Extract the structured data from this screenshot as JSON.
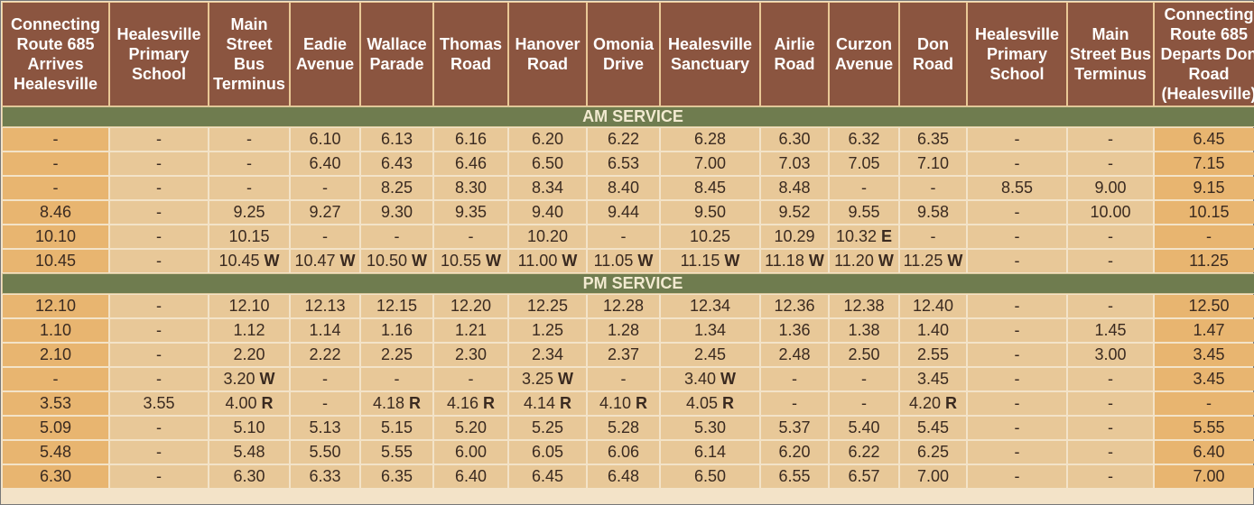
{
  "table": {
    "headers": [
      "Connecting Route 685 Arrives Healesville",
      "Healesville Primary School",
      "Main Street Bus Terminus",
      "Eadie Avenue",
      "Wallace Parade",
      "Thomas Road",
      "Hanover Road",
      "Omonia Drive",
      "Healesville Sanctuary",
      "Airlie Road",
      "Curzon Avenue",
      "Don Road",
      "Healesville Primary School",
      "Main Street Bus Terminus",
      "Connecting Route 685 Departs Don Road (Healesville)"
    ],
    "sections": [
      {
        "title": "AM SERVICE",
        "rows": [
          [
            "-",
            "-",
            "-",
            "6.10",
            "6.13",
            "6.16",
            "6.20",
            "6.22",
            "6.28",
            "6.30",
            "6.32",
            "6.35",
            "-",
            "-",
            "6.45"
          ],
          [
            "-",
            "-",
            "-",
            "6.40",
            "6.43",
            "6.46",
            "6.50",
            "6.53",
            "7.00",
            "7.03",
            "7.05",
            "7.10",
            "-",
            "-",
            "7.15"
          ],
          [
            "-",
            "-",
            "-",
            "-",
            "8.25",
            "8.30",
            "8.34",
            "8.40",
            "8.45",
            "8.48",
            "-",
            "-",
            "8.55",
            "9.00",
            "9.15"
          ],
          [
            "8.46",
            "-",
            "9.25",
            "9.27",
            "9.30",
            "9.35",
            "9.40",
            "9.44",
            "9.50",
            "9.52",
            "9.55",
            "9.58",
            "-",
            "10.00",
            "10.15"
          ],
          [
            "10.10",
            "-",
            "10.15",
            "-",
            "-",
            "-",
            "10.20",
            "-",
            "10.25",
            "10.29",
            {
              "time": "10.32",
              "note": "E"
            },
            "-",
            "-",
            "-",
            "-"
          ],
          [
            "10.45",
            "-",
            {
              "time": "10.45",
              "note": "W"
            },
            {
              "time": "10.47",
              "note": "W"
            },
            {
              "time": "10.50",
              "note": "W"
            },
            {
              "time": "10.55",
              "note": "W"
            },
            {
              "time": "11.00",
              "note": "W"
            },
            {
              "time": "11.05",
              "note": "W"
            },
            {
              "time": "11.15",
              "note": "W"
            },
            {
              "time": "11.18",
              "note": "W"
            },
            {
              "time": "11.20",
              "note": "W"
            },
            {
              "time": "11.25",
              "note": "W"
            },
            "-",
            "-",
            "11.25"
          ]
        ]
      },
      {
        "title": "PM SERVICE",
        "rows": [
          [
            "12.10",
            "-",
            "12.10",
            "12.13",
            "12.15",
            "12.20",
            "12.25",
            "12.28",
            "12.34",
            "12.36",
            "12.38",
            "12.40",
            "-",
            "-",
            "12.50"
          ],
          [
            "1.10",
            "-",
            "1.12",
            "1.14",
            "1.16",
            "1.21",
            "1.25",
            "1.28",
            "1.34",
            "1.36",
            "1.38",
            "1.40",
            "-",
            "1.45",
            "1.47"
          ],
          [
            "2.10",
            "-",
            "2.20",
            "2.22",
            "2.25",
            "2.30",
            "2.34",
            "2.37",
            "2.45",
            "2.48",
            "2.50",
            "2.55",
            "-",
            "3.00",
            "3.45"
          ],
          [
            "-",
            "-",
            {
              "time": "3.20",
              "note": "W"
            },
            "-",
            "-",
            "-",
            {
              "time": "3.25",
              "note": "W"
            },
            "-",
            {
              "time": "3.40",
              "note": "W"
            },
            "-",
            "-",
            "3.45",
            "-",
            "-",
            "3.45"
          ],
          [
            "3.53",
            "3.55",
            {
              "time": "4.00",
              "note": "R"
            },
            "-",
            {
              "time": "4.18",
              "note": "R"
            },
            {
              "time": "4.16",
              "note": "R"
            },
            {
              "time": "4.14",
              "note": "R"
            },
            {
              "time": "4.10",
              "note": "R"
            },
            {
              "time": "4.05",
              "note": "R"
            },
            "-",
            "-",
            {
              "time": "4.20",
              "note": "R"
            },
            "-",
            "-",
            "-"
          ],
          [
            "5.09",
            "-",
            "5.10",
            "5.13",
            "5.15",
            "5.20",
            "5.25",
            "5.28",
            "5.30",
            "5.37",
            "5.40",
            "5.45",
            "-",
            "-",
            "5.55"
          ],
          [
            "5.48",
            "-",
            "5.48",
            "5.50",
            "5.55",
            "6.00",
            "6.05",
            "6.06",
            "6.14",
            "6.20",
            "6.22",
            "6.25",
            "-",
            "-",
            "6.40"
          ],
          [
            "6.30",
            "-",
            "6.30",
            "6.33",
            "6.35",
            "6.40",
            "6.45",
            "6.48",
            "6.50",
            "6.55",
            "6.57",
            "7.00",
            "-",
            "-",
            "7.00"
          ]
        ]
      }
    ]
  }
}
